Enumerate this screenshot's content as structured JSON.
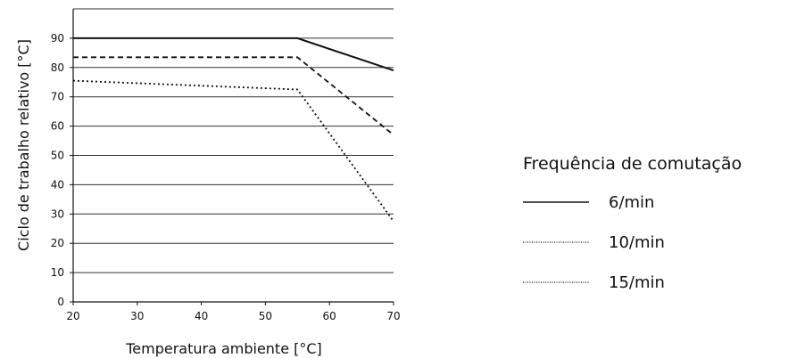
{
  "chart_data": {
    "type": "line",
    "xlabel": "Temperatura ambiente [°C]",
    "ylabel": "Ciclo de trabalho relativo [°C]",
    "xlim": [
      20,
      70
    ],
    "ylim": [
      0,
      100
    ],
    "xticks": [
      20,
      30,
      40,
      50,
      60,
      70
    ],
    "yticks": [
      0,
      10,
      20,
      30,
      40,
      50,
      60,
      70,
      80,
      90
    ],
    "grid": "horizontal",
    "legend": {
      "title": "Frequência de comutação",
      "placement": "right"
    },
    "series": [
      {
        "name": "6/min",
        "style": "solid",
        "x": [
          20,
          55,
          70
        ],
        "y": [
          90,
          90,
          79
        ]
      },
      {
        "name": "10/min",
        "style": "dashed",
        "x": [
          20,
          55,
          70
        ],
        "y": [
          83.5,
          83.5,
          57
        ]
      },
      {
        "name": "15/min",
        "style": "dotted",
        "x": [
          20,
          55,
          70
        ],
        "y": [
          75.5,
          72.5,
          27.5
        ]
      }
    ]
  }
}
